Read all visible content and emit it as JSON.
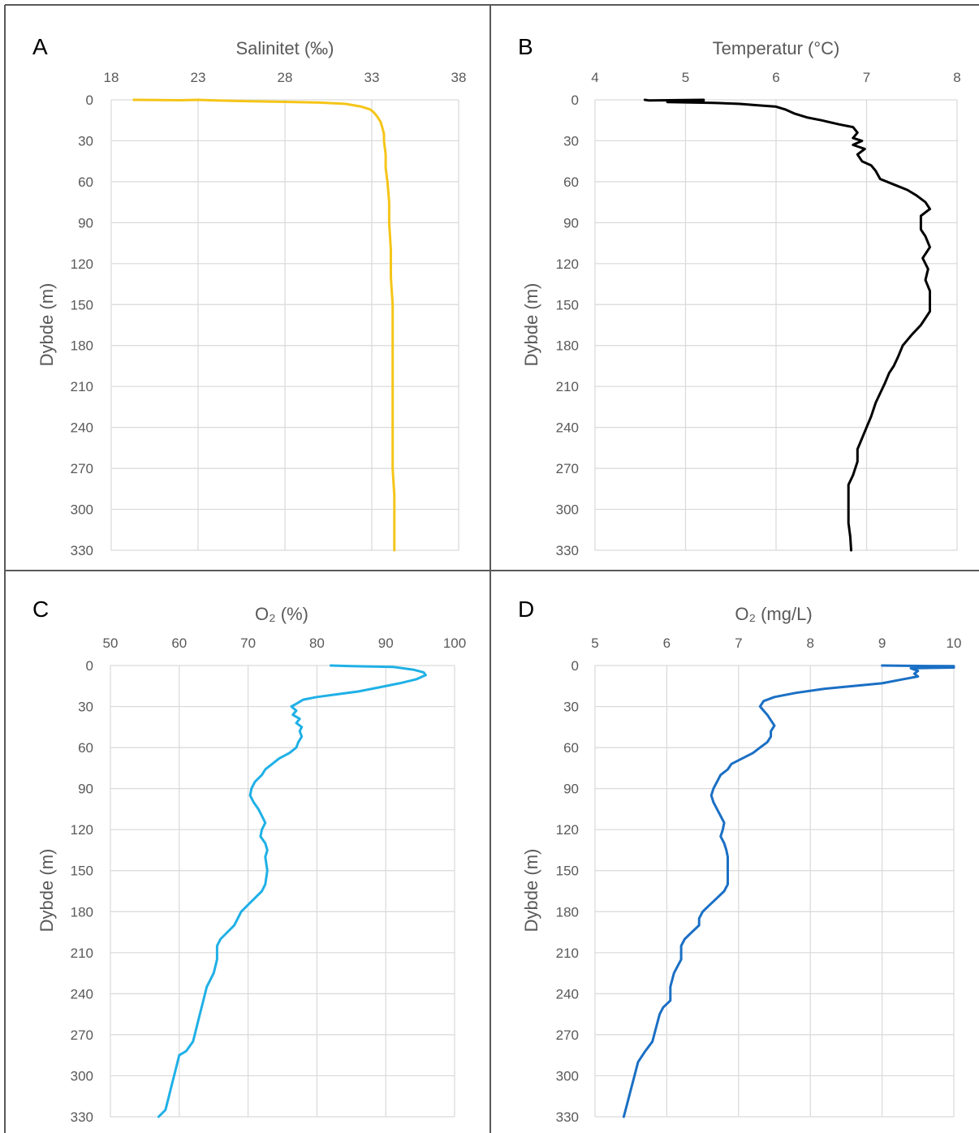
{
  "chart_data": [
    {
      "type": "line",
      "panel_label": "A",
      "title": "Salinitet (‰)",
      "xlabel": "Salinitet (‰)",
      "ylabel": "Dybde (m)",
      "xlim": [
        18,
        38
      ],
      "ylim": [
        0,
        330
      ],
      "x_ticks": [
        18,
        23,
        28,
        33,
        38
      ],
      "y_ticks": [
        0,
        30,
        60,
        90,
        120,
        150,
        180,
        210,
        240,
        270,
        300,
        330
      ],
      "x_axis_position": "top",
      "y_reversed": true,
      "grid": true,
      "series": [
        {
          "color": "#f5c518",
          "points": [
            [
              19.3,
              0
            ],
            [
              22.0,
              0.3
            ],
            [
              23.0,
              0
            ],
            [
              24.0,
              0.5
            ],
            [
              26.0,
              1
            ],
            [
              28.0,
              1.5
            ],
            [
              30.0,
              2
            ],
            [
              31.5,
              3
            ],
            [
              32.4,
              5
            ],
            [
              32.9,
              7
            ],
            [
              33.1,
              9
            ],
            [
              33.3,
              12
            ],
            [
              33.5,
              16
            ],
            [
              33.6,
              20
            ],
            [
              33.7,
              25
            ],
            [
              33.7,
              30
            ],
            [
              33.8,
              40
            ],
            [
              33.8,
              50
            ],
            [
              33.9,
              60
            ],
            [
              34.0,
              75
            ],
            [
              34.0,
              90
            ],
            [
              34.1,
              110
            ],
            [
              34.1,
              130
            ],
            [
              34.2,
              150
            ],
            [
              34.2,
              170
            ],
            [
              34.2,
              190
            ],
            [
              34.2,
              210
            ],
            [
              34.2,
              230
            ],
            [
              34.2,
              250
            ],
            [
              34.2,
              270
            ],
            [
              34.3,
              290
            ],
            [
              34.3,
              310
            ],
            [
              34.3,
              330
            ]
          ]
        }
      ]
    },
    {
      "type": "line",
      "panel_label": "B",
      "title": "Temperatur (°C)",
      "xlabel": "Temperatur (°C)",
      "ylabel": "Dybde (m)",
      "xlim": [
        4,
        8
      ],
      "ylim": [
        0,
        330
      ],
      "x_ticks": [
        4,
        5,
        6,
        7,
        8
      ],
      "y_ticks": [
        0,
        30,
        60,
        90,
        120,
        150,
        180,
        210,
        240,
        270,
        300,
        330
      ],
      "x_axis_position": "top",
      "y_reversed": true,
      "grid": true,
      "series": [
        {
          "color": "#000000",
          "points": [
            [
              4.55,
              0
            ],
            [
              4.6,
              0.5
            ],
            [
              5.2,
              0
            ],
            [
              4.8,
              1
            ],
            [
              5.2,
              1.2
            ],
            [
              4.8,
              1.6
            ],
            [
              5.3,
              2.2
            ],
            [
              5.6,
              3
            ],
            [
              5.8,
              4
            ],
            [
              6.0,
              5
            ],
            [
              6.1,
              7
            ],
            [
              6.2,
              10
            ],
            [
              6.35,
              13
            ],
            [
              6.5,
              15
            ],
            [
              6.7,
              18
            ],
            [
              6.85,
              20
            ],
            [
              6.9,
              24
            ],
            [
              6.85,
              28
            ],
            [
              6.95,
              30
            ],
            [
              6.85,
              33
            ],
            [
              6.98,
              36
            ],
            [
              6.9,
              40
            ],
            [
              6.95,
              45
            ],
            [
              7.05,
              48
            ],
            [
              7.1,
              52
            ],
            [
              7.15,
              58
            ],
            [
              7.3,
              62
            ],
            [
              7.45,
              66
            ],
            [
              7.55,
              70
            ],
            [
              7.65,
              75
            ],
            [
              7.7,
              80
            ],
            [
              7.6,
              85
            ],
            [
              7.6,
              95
            ],
            [
              7.65,
              100
            ],
            [
              7.7,
              108
            ],
            [
              7.62,
              116
            ],
            [
              7.68,
              124
            ],
            [
              7.65,
              132
            ],
            [
              7.7,
              140
            ],
            [
              7.7,
              155
            ],
            [
              7.6,
              165
            ],
            [
              7.5,
              172
            ],
            [
              7.4,
              180
            ],
            [
              7.35,
              188
            ],
            [
              7.3,
              195
            ],
            [
              7.25,
              200
            ],
            [
              7.2,
              208
            ],
            [
              7.15,
              215
            ],
            [
              7.1,
              222
            ],
            [
              7.05,
              232
            ],
            [
              7.0,
              240
            ],
            [
              6.95,
              248
            ],
            [
              6.9,
              256
            ],
            [
              6.9,
              265
            ],
            [
              6.85,
              275
            ],
            [
              6.8,
              282
            ],
            [
              6.8,
              290
            ],
            [
              6.8,
              300
            ],
            [
              6.8,
              310
            ],
            [
              6.82,
              320
            ],
            [
              6.83,
              330
            ]
          ]
        }
      ]
    },
    {
      "type": "line",
      "panel_label": "C",
      "title": "O₂ (%)",
      "xlabel": "O₂ (%)",
      "ylabel": "Dybde (m)",
      "xlim": [
        50,
        100
      ],
      "ylim": [
        0,
        330
      ],
      "x_ticks": [
        50,
        60,
        70,
        80,
        90,
        100
      ],
      "y_ticks": [
        0,
        30,
        60,
        90,
        120,
        150,
        180,
        210,
        240,
        270,
        300,
        330
      ],
      "x_axis_position": "top",
      "y_reversed": true,
      "grid": true,
      "series": [
        {
          "color": "#1fb0e6",
          "points": [
            [
              82.0,
              0
            ],
            [
              85.0,
              0.5
            ],
            [
              88.0,
              0.7
            ],
            [
              91.0,
              1
            ],
            [
              92.5,
              2
            ],
            [
              94.0,
              3
            ],
            [
              95.5,
              5
            ],
            [
              95.8,
              7
            ],
            [
              94.5,
              10
            ],
            [
              92.0,
              13
            ],
            [
              89.0,
              16
            ],
            [
              86.0,
              19
            ],
            [
              83.0,
              21
            ],
            [
              80.0,
              23
            ],
            [
              78.0,
              25
            ],
            [
              77.0,
              28
            ],
            [
              76.3,
              30
            ],
            [
              77.0,
              33
            ],
            [
              76.5,
              36
            ],
            [
              77.5,
              39
            ],
            [
              77.0,
              42
            ],
            [
              77.8,
              45
            ],
            [
              77.5,
              48
            ],
            [
              77.8,
              52
            ],
            [
              77.3,
              56
            ],
            [
              77.0,
              60
            ],
            [
              76.0,
              64
            ],
            [
              74.5,
              68
            ],
            [
              73.5,
              72
            ],
            [
              72.5,
              76
            ],
            [
              72.0,
              80
            ],
            [
              71.0,
              85
            ],
            [
              70.5,
              90
            ],
            [
              70.3,
              95
            ],
            [
              70.8,
              100
            ],
            [
              71.5,
              105
            ],
            [
              72.0,
              110
            ],
            [
              72.5,
              115
            ],
            [
              72.0,
              120
            ],
            [
              71.8,
              125
            ],
            [
              72.5,
              130
            ],
            [
              72.8,
              135
            ],
            [
              72.5,
              140
            ],
            [
              72.8,
              150
            ],
            [
              72.5,
              160
            ],
            [
              72.0,
              165
            ],
            [
              71.0,
              170
            ],
            [
              70.0,
              175
            ],
            [
              69.0,
              180
            ],
            [
              68.5,
              185
            ],
            [
              68.0,
              190
            ],
            [
              67.0,
              195
            ],
            [
              66.0,
              200
            ],
            [
              65.5,
              205
            ],
            [
              65.5,
              215
            ],
            [
              65.0,
              225
            ],
            [
              64.0,
              235
            ],
            [
              63.5,
              245
            ],
            [
              63.0,
              255
            ],
            [
              62.5,
              265
            ],
            [
              62.0,
              275
            ],
            [
              61.0,
              282
            ],
            [
              60.0,
              285
            ],
            [
              59.5,
              295
            ],
            [
              59.0,
              305
            ],
            [
              58.5,
              315
            ],
            [
              58.0,
              325
            ],
            [
              57.0,
              330
            ]
          ]
        }
      ]
    },
    {
      "type": "line",
      "panel_label": "D",
      "title": "O₂ (mg/L)",
      "xlabel": "O₂ (mg/L)",
      "ylabel": "Dybde (m)",
      "xlim": [
        5,
        10
      ],
      "ylim": [
        0,
        330
      ],
      "x_ticks": [
        5,
        6,
        7,
        8,
        9,
        10
      ],
      "y_ticks": [
        0,
        30,
        60,
        90,
        120,
        150,
        180,
        210,
        240,
        270,
        300,
        330
      ],
      "x_axis_position": "top",
      "y_reversed": true,
      "grid": true,
      "series": [
        {
          "color": "#1a6fc4",
          "points": [
            [
              9.0,
              0
            ],
            [
              9.5,
              0.3
            ],
            [
              10.0,
              0.5
            ],
            [
              9.5,
              1
            ],
            [
              10.0,
              1.5
            ],
            [
              9.4,
              2
            ],
            [
              9.5,
              4
            ],
            [
              9.45,
              6
            ],
            [
              9.5,
              8
            ],
            [
              9.3,
              10
            ],
            [
              9.0,
              13
            ],
            [
              8.6,
              15
            ],
            [
              8.2,
              17
            ],
            [
              7.8,
              20
            ],
            [
              7.5,
              23
            ],
            [
              7.35,
              26
            ],
            [
              7.3,
              30
            ],
            [
              7.35,
              33
            ],
            [
              7.4,
              36
            ],
            [
              7.45,
              40
            ],
            [
              7.5,
              44
            ],
            [
              7.45,
              48
            ],
            [
              7.45,
              52
            ],
            [
              7.4,
              56
            ],
            [
              7.3,
              60
            ],
            [
              7.2,
              64
            ],
            [
              7.05,
              68
            ],
            [
              6.9,
              72
            ],
            [
              6.85,
              76
            ],
            [
              6.75,
              80
            ],
            [
              6.7,
              85
            ],
            [
              6.65,
              90
            ],
            [
              6.62,
              95
            ],
            [
              6.65,
              100
            ],
            [
              6.7,
              105
            ],
            [
              6.75,
              110
            ],
            [
              6.8,
              115
            ],
            [
              6.78,
              120
            ],
            [
              6.75,
              125
            ],
            [
              6.8,
              130
            ],
            [
              6.83,
              135
            ],
            [
              6.85,
              140
            ],
            [
              6.85,
              150
            ],
            [
              6.85,
              160
            ],
            [
              6.8,
              165
            ],
            [
              6.7,
              170
            ],
            [
              6.6,
              175
            ],
            [
              6.5,
              180
            ],
            [
              6.45,
              185
            ],
            [
              6.45,
              190
            ],
            [
              6.35,
              195
            ],
            [
              6.25,
              200
            ],
            [
              6.2,
              205
            ],
            [
              6.2,
              215
            ],
            [
              6.1,
              225
            ],
            [
              6.05,
              235
            ],
            [
              6.05,
              245
            ],
            [
              5.95,
              250
            ],
            [
              5.9,
              255
            ],
            [
              5.85,
              265
            ],
            [
              5.8,
              275
            ],
            [
              5.7,
              282
            ],
            [
              5.6,
              290
            ],
            [
              5.55,
              300
            ],
            [
              5.5,
              310
            ],
            [
              5.45,
              320
            ],
            [
              5.4,
              330
            ]
          ]
        }
      ]
    }
  ]
}
